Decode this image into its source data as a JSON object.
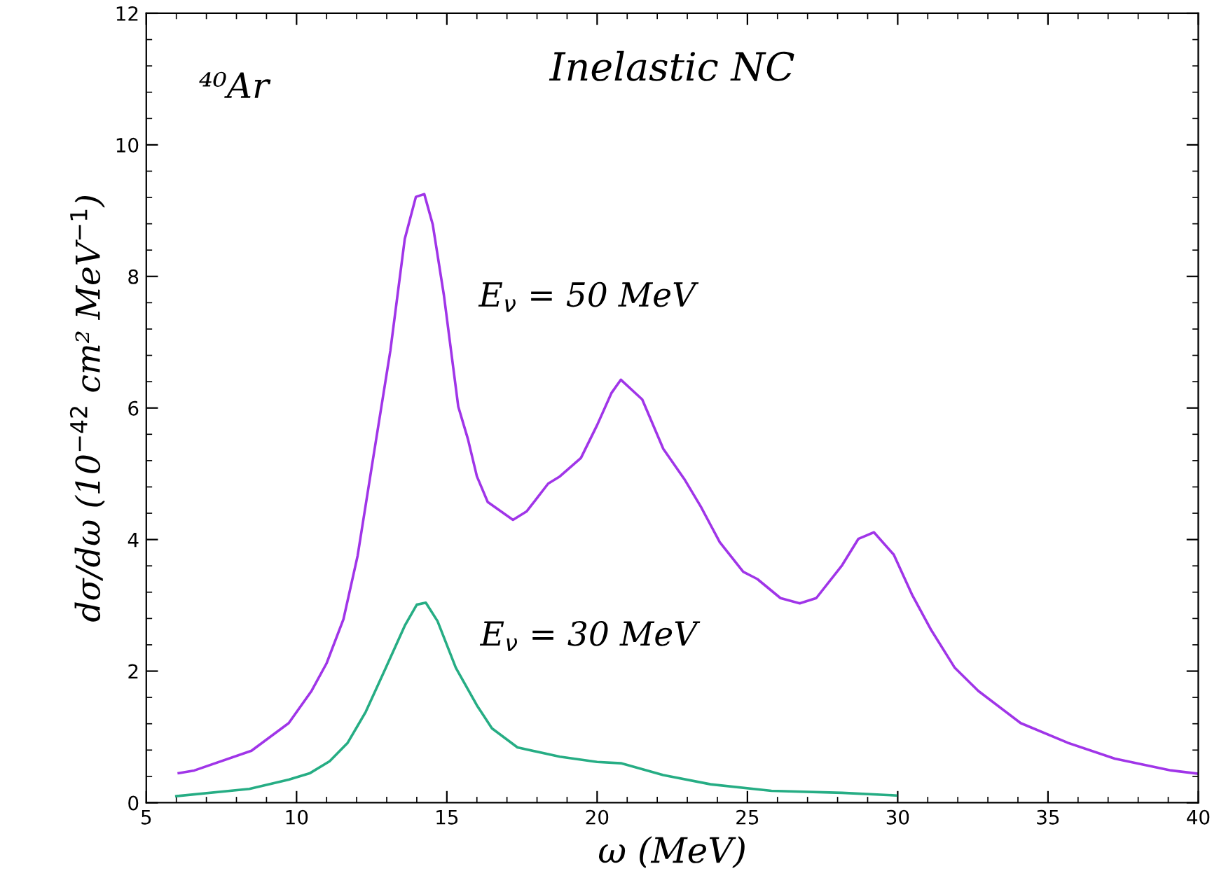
{
  "chart_data": {
    "type": "line",
    "title": "Inelastic NC",
    "xlabel": "ω (MeV)",
    "ylabel": "dσ/dω (10$^{−42}$ cm² MeV$^{−1}$)",
    "annotations": [
      "⁴⁰Ar"
    ],
    "xlim": [
      5,
      40
    ],
    "xticks": [
      5,
      10,
      15,
      20,
      25,
      30,
      35,
      40
    ],
    "ylim": [
      0,
      12
    ],
    "yticks": [
      0,
      2,
      4,
      6,
      8,
      10,
      12
    ],
    "grid": false,
    "legend": false,
    "marker": "none",
    "line_style": "solid",
    "series": [
      {
        "name": "E$_{ν}$ = 50 MeV",
        "color": "#a035e8",
        "x": [
          6.08,
          6.6,
          8.5,
          9.74,
          10.5,
          11.0,
          11.56,
          12.03,
          12.5,
          13.12,
          13.6,
          13.97,
          14.25,
          14.53,
          14.9,
          15.38,
          15.7,
          16.0,
          16.36,
          17.2,
          17.66,
          18.37,
          18.76,
          19.46,
          20.0,
          20.48,
          20.79,
          21.5,
          22.2,
          22.9,
          23.45,
          24.08,
          24.86,
          25.33,
          26.1,
          26.74,
          27.29,
          28.15,
          28.69,
          29.21,
          29.87,
          30.49,
          31.12,
          31.9,
          32.68,
          34.09,
          35.66,
          37.22,
          39.1,
          40.0
        ],
        "values": [
          0.45,
          0.49,
          0.79,
          1.21,
          1.7,
          2.12,
          2.79,
          3.75,
          5.1,
          6.87,
          8.57,
          9.21,
          9.25,
          8.79,
          7.72,
          6.02,
          5.53,
          4.96,
          4.57,
          4.3,
          4.43,
          4.85,
          4.96,
          5.24,
          5.74,
          6.23,
          6.43,
          6.13,
          5.38,
          4.92,
          4.5,
          3.96,
          3.51,
          3.4,
          3.11,
          3.03,
          3.11,
          3.61,
          4.01,
          4.11,
          3.77,
          3.15,
          2.62,
          2.05,
          1.7,
          1.21,
          0.91,
          0.67,
          0.49,
          0.44
        ]
      },
      {
        "name": "E$_{ν}$ = 30 MeV",
        "color": "#26ad84",
        "x": [
          6.0,
          8.43,
          9.74,
          10.45,
          11.1,
          11.7,
          12.3,
          12.97,
          13.6,
          14.0,
          14.3,
          14.69,
          15.3,
          16.0,
          16.5,
          17.35,
          18.76,
          20.0,
          20.79,
          22.2,
          23.77,
          25.8,
          28.15,
          29.94
        ],
        "values": [
          0.1,
          0.21,
          0.35,
          0.45,
          0.63,
          0.91,
          1.38,
          2.05,
          2.69,
          3.01,
          3.04,
          2.76,
          2.05,
          1.48,
          1.13,
          0.84,
          0.7,
          0.62,
          0.6,
          0.42,
          0.28,
          0.18,
          0.15,
          0.11
        ]
      }
    ]
  }
}
